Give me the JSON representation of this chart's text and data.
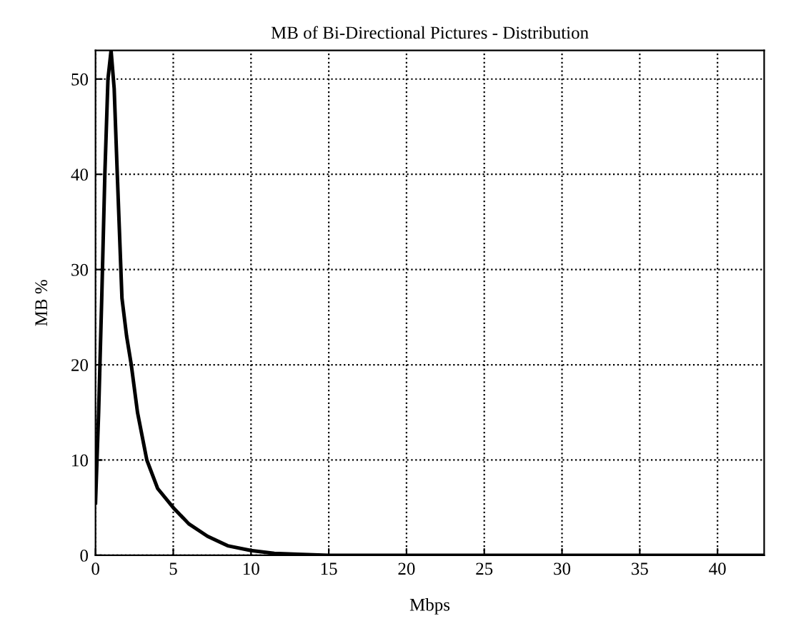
{
  "chart_data": {
    "type": "line",
    "title": "MB of Bi-Directional Pictures - Distribution",
    "xlabel": "Mbps",
    "ylabel": "MB %",
    "x": [
      0,
      0.2,
      0.4,
      0.6,
      0.8,
      1.0,
      1.2,
      1.4,
      1.7,
      2.0,
      2.3,
      2.7,
      3.3,
      4.0,
      5.0,
      6.0,
      7.2,
      8.5,
      10,
      11.5,
      13,
      15,
      20,
      30,
      43
    ],
    "series": [
      {
        "color": "#000000",
        "values": [
          5.5,
          15,
          27,
          40,
          50,
          53,
          49,
          40,
          27,
          23,
          20,
          15,
          10,
          7,
          5,
          3.3,
          2,
          1,
          0.5,
          0.2,
          0.1,
          0,
          0,
          0,
          0
        ]
      }
    ],
    "xlim": [
      0,
      43
    ],
    "ylim": [
      0,
      53
    ],
    "xticks": [
      0,
      5,
      10,
      15,
      20,
      25,
      30,
      35,
      40
    ],
    "yticks": [
      0,
      10,
      20,
      30,
      40,
      50
    ],
    "grid": true,
    "line_style": "solid",
    "marker": "none"
  }
}
